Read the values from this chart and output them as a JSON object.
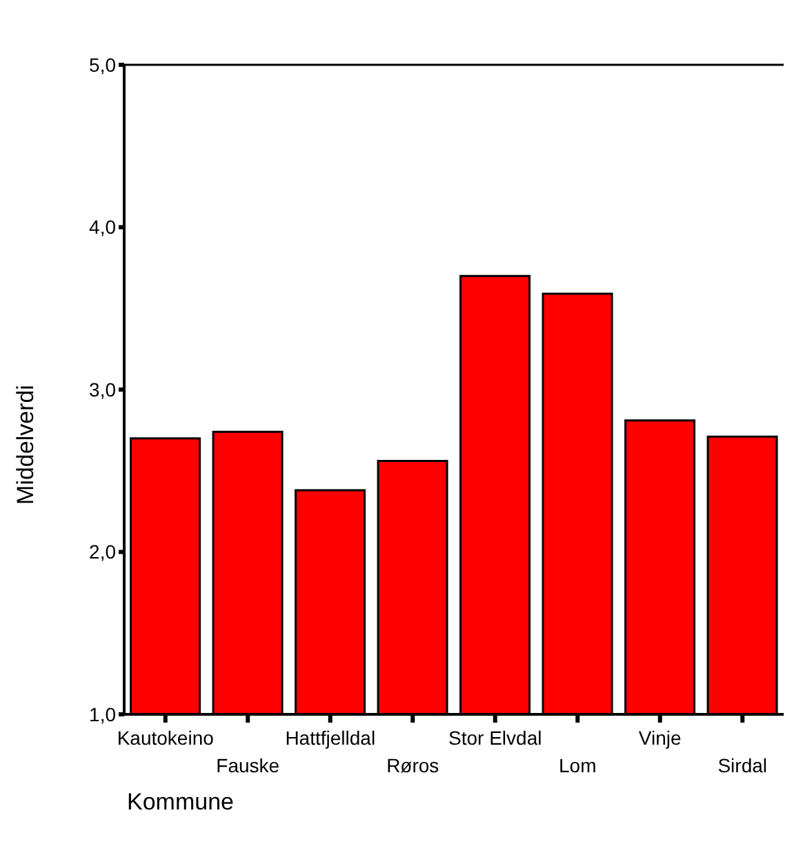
{
  "chart_data": {
    "type": "bar",
    "xlabel": "Kommune",
    "ylabel": "Middelverdi",
    "categories": [
      "Kautokeino",
      "Fauske",
      "Hattfjelldal",
      "Røros",
      "Stor Elvdal",
      "Lom",
      "Vinje",
      "Sirdal"
    ],
    "values": [
      2.7,
      2.74,
      2.38,
      2.56,
      3.7,
      3.59,
      2.81,
      2.71
    ],
    "color": "#ff0000",
    "ylim": [
      1,
      5
    ],
    "yticks": [
      {
        "value": 1,
        "label": "1,0"
      },
      {
        "value": 2,
        "label": "2,0"
      },
      {
        "value": 3,
        "label": "3,0"
      },
      {
        "value": 4,
        "label": "4,0"
      },
      {
        "value": 5,
        "label": "5,0"
      }
    ],
    "grid": false,
    "legend": false
  }
}
